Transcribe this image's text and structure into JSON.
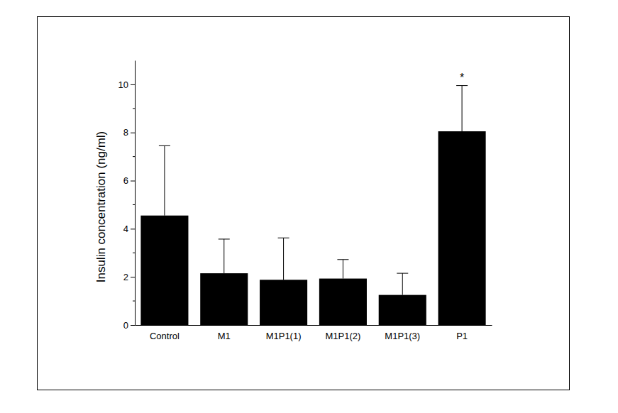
{
  "chart_data": {
    "type": "bar",
    "y_label": "Insulin concentration (ng/ml)",
    "categories": [
      "Control",
      "M1",
      "M1P1(1)",
      "M1P1(2)",
      "M1P1(3)",
      "P1"
    ],
    "values": [
      4.55,
      2.15,
      1.88,
      1.93,
      1.25,
      8.05
    ],
    "errors": [
      2.9,
      1.42,
      1.74,
      0.79,
      0.9,
      1.9
    ],
    "color": "#000000",
    "ylim": [
      0,
      11
    ],
    "yticks": [
      0,
      2,
      4,
      6,
      8,
      10
    ],
    "grid": false,
    "annotations": [
      {
        "text": "*",
        "category": "P1"
      }
    ]
  }
}
